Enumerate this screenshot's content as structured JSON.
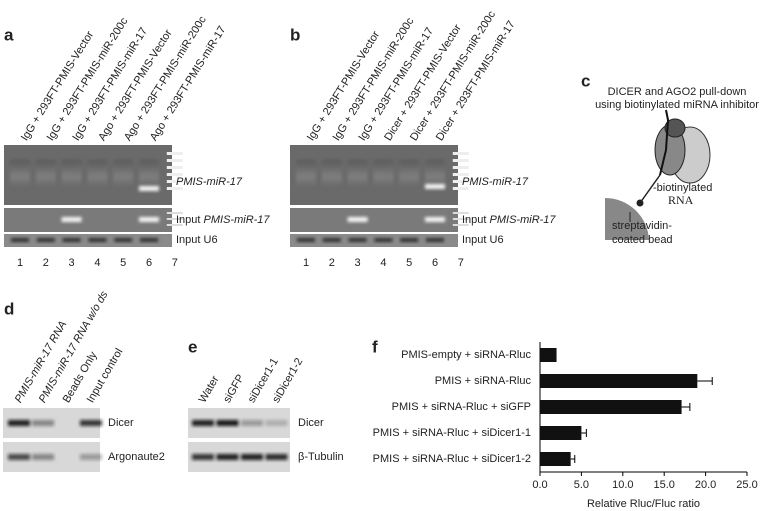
{
  "panels": {
    "a": {
      "label": "a",
      "lanes": [
        "IgG + 293FT-PMIS-Vector",
        "IgG + 293FT-PMIS-miR-200c",
        "IgG + 293FT-PMIS-miR-17",
        "Ago + 293FT-PMIS-Vector",
        "Ago + 293FT-PMIS-miR-200c",
        "Ago + 293FT-PMIS-miR-17"
      ],
      "lane_numbers": [
        "1",
        "2",
        "3",
        "4",
        "5",
        "6",
        "7"
      ],
      "product": "PMIS-miR-17",
      "input_prefix": "Input",
      "input_target": "PMIS-miR-17",
      "input_u6": "Input U6"
    },
    "b": {
      "label": "b",
      "lanes": [
        "IgG + 293FT-PMIS-Vector",
        "IgG + 293FT-PMIS-miR-200c",
        "IgG + 293FT-PMIS-miR-17",
        "Dicer + 293FT-PMIS-Vector",
        "Dicer + 293FT-PMIS-miR-200c",
        "Dicer + 293FT-PMIS-miR-17"
      ],
      "lane_numbers": [
        "1",
        "2",
        "3",
        "4",
        "5",
        "6",
        "7"
      ],
      "product": "PMIS-miR-17",
      "input_prefix": "Input",
      "input_target": "PMIS-miR-17",
      "input_u6": "Input U6"
    },
    "c": {
      "label": "c",
      "title_lines": [
        "DICER and AGO2 pull-down",
        "using biotinylated miRNA inhibitor"
      ],
      "rna_prefix": "-biotinylated",
      "rna_word": "RNA",
      "bead_lines": [
        "streptavidin-",
        "coated bead"
      ]
    },
    "d": {
      "label": "d",
      "lanes": [
        "PMIS-miR-17 RNA",
        "PMIS-miR-17 RNA w/o ds",
        "Beads Only",
        "Input control"
      ],
      "bands": [
        "Dicer",
        "Argonaute2"
      ]
    },
    "e": {
      "label": "e",
      "lanes": [
        "Water",
        "siGFP",
        "siDicer1-1",
        "siDicer1-2"
      ],
      "bands": [
        "Dicer",
        "β-Tubulin"
      ]
    }
  },
  "chart_data": {
    "type": "bar",
    "orientation": "horizontal",
    "label": "f",
    "categories": [
      "PMIS-empty + siRNA-Rluc",
      "PMIS + siRNA-Rluc",
      "PMIS + siRNA-Rluc + siGFP",
      "PMIS + siRNA-Rluc + siDicer1-1",
      "PMIS + siRNA-Rluc + siDicer1-2"
    ],
    "values": [
      2.0,
      19.0,
      17.1,
      5.0,
      3.7
    ],
    "errors": [
      0,
      1.8,
      1.0,
      0.6,
      0.5
    ],
    "color": "#111111",
    "xlabel": "Relative Rluc/Fluc ratio",
    "xlim": [
      0,
      25
    ],
    "xticks": [
      {
        "value": 0,
        "label": "0.0"
      },
      {
        "value": 5,
        "label": "5.0"
      },
      {
        "value": 10,
        "label": "10.0"
      },
      {
        "value": 15,
        "label": "15.0"
      },
      {
        "value": 20,
        "label": "20.0"
      },
      {
        "value": 25,
        "label": "25.0"
      }
    ]
  }
}
